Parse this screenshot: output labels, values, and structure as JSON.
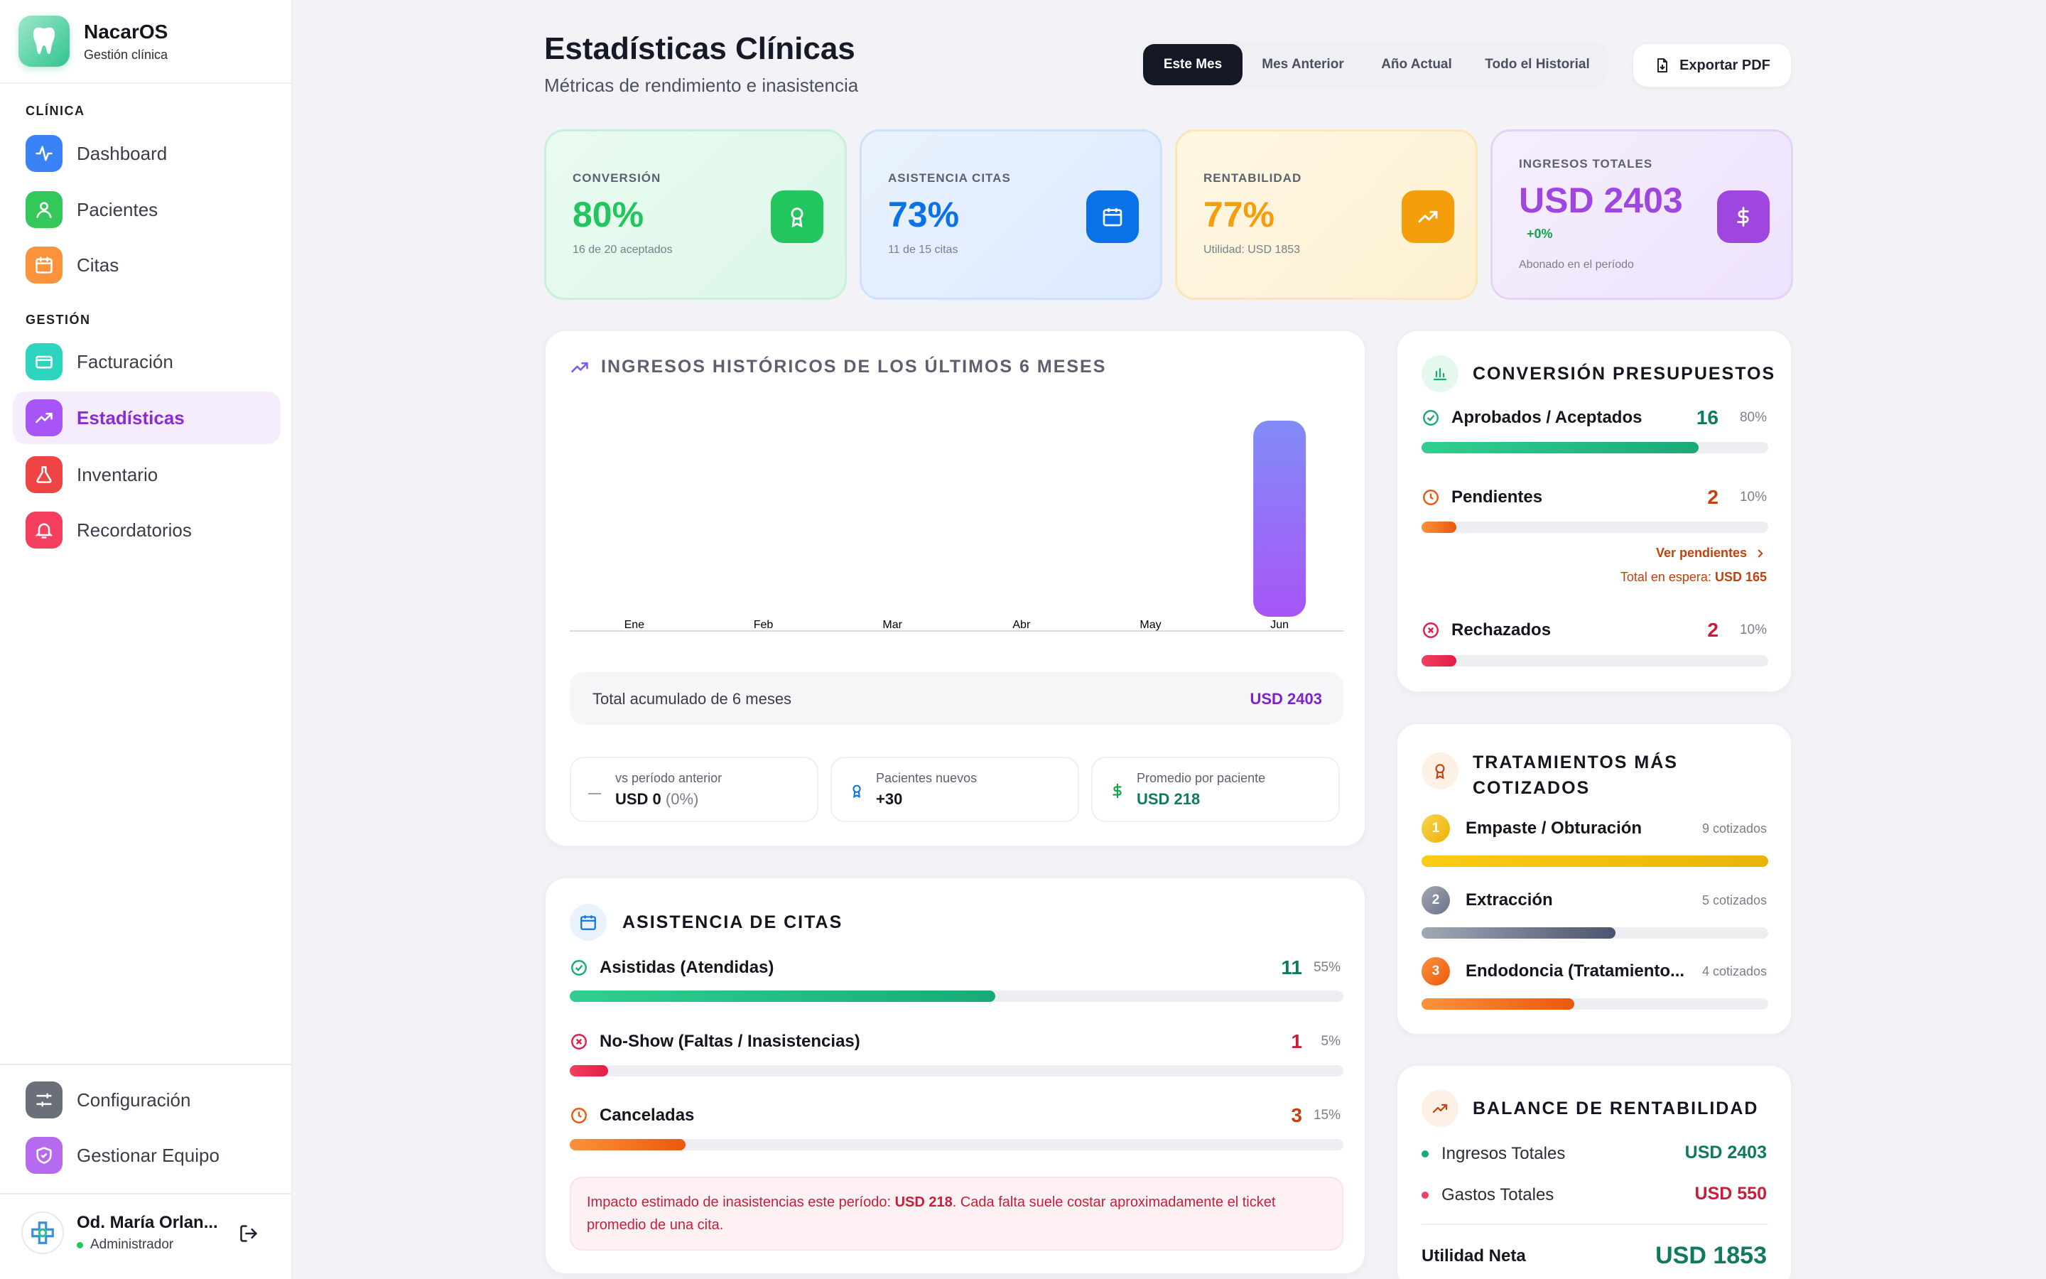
{
  "app": {
    "name": "NacarOS",
    "subtitle": "Gestión clínica"
  },
  "sidebar": {
    "section_clinica": "CLÍNICA",
    "section_gestion": "GESTIÓN",
    "items": [
      {
        "label": "Dashboard",
        "icon": "activity-icon",
        "color": "#3b82f6"
      },
      {
        "label": "Pacientes",
        "icon": "user-icon",
        "color": "#34c759"
      },
      {
        "label": "Citas",
        "icon": "calendar-icon",
        "color": "#fb923c"
      },
      {
        "label": "Facturación",
        "icon": "credit-card-icon",
        "color": "#2dd4bf"
      },
      {
        "label": "Estadísticas",
        "icon": "trending-up-icon",
        "color": "#a855f7"
      },
      {
        "label": "Inventario",
        "icon": "flask-icon",
        "color": "#ef4444"
      },
      {
        "label": "Recordatorios",
        "icon": "bell-icon",
        "color": "#f43f5e"
      }
    ],
    "bottom": [
      {
        "label": "Configuración",
        "icon": "sliders-icon"
      },
      {
        "label": "Gestionar Equipo",
        "icon": "shield-icon"
      }
    ],
    "user": {
      "name": "Od. María Orlan...",
      "role": "Administrador"
    }
  },
  "header": {
    "title": "Estadísticas Clínicas",
    "subtitle": "Métricas de rendimiento e inasistencia",
    "tabs": [
      "Este Mes",
      "Mes Anterior",
      "Año Actual",
      "Todo el Historial"
    ],
    "active_tab": "Este Mes",
    "export_label": "Exportar PDF"
  },
  "kpis": [
    {
      "label": "CONVERSIÓN",
      "value": "80%",
      "sub": "16 de 20 aceptados",
      "color": "#22c55e"
    },
    {
      "label": "ASISTENCIA CITAS",
      "value": "73%",
      "sub": "11 de 15 citas",
      "color": "#0a72e8"
    },
    {
      "label": "RENTABILIDAD",
      "value": "77%",
      "sub": "Utilidad: USD 1853",
      "color": "#f59e0b"
    },
    {
      "label": "INGRESOS TOTALES",
      "value": "USD 2403",
      "delta": "+0%",
      "sub": "Abonado en el período",
      "color": "#a046e0"
    }
  ],
  "revenue": {
    "title": "INGRESOS HISTÓRICOS DE LOS ÚLTIMOS 6 MESES",
    "total_label": "Total acumulado de 6 meses",
    "total_value": "USD 2403",
    "stats": [
      {
        "label": "vs período anterior",
        "value": "USD 0",
        "extra": "(0%)"
      },
      {
        "label": "Pacientes nuevos",
        "value": "+30"
      },
      {
        "label": "Promedio por paciente",
        "value": "USD 218"
      }
    ]
  },
  "chart_data": {
    "type": "bar",
    "categories": [
      "Ene",
      "Feb",
      "Mar",
      "Abr",
      "May",
      "Jun"
    ],
    "values": [
      0,
      0,
      0,
      0,
      0,
      2403
    ],
    "ylim": [
      0,
      2403
    ],
    "grid": false
  },
  "attendance": {
    "title": "ASISTENCIA DE CITAS",
    "rows": [
      {
        "label": "Asistidas (Atendidas)",
        "count": "11",
        "pct": "55%",
        "ratio": 0.55,
        "color": "#1aaa77"
      },
      {
        "label": "No-Show (Faltas / Inasistencias)",
        "count": "1",
        "pct": "5%",
        "ratio": 0.05,
        "color": "#e11d48"
      },
      {
        "label": "Canceladas",
        "count": "3",
        "pct": "15%",
        "ratio": 0.15,
        "color": "#ea580c"
      }
    ],
    "note_pre": "Impacto estimado de inasistencias este período: ",
    "note_amount": "USD 218",
    "note_post": ". Cada falta suele costar aproximadamente el ticket promedio de una cita."
  },
  "budgets": {
    "title": "CONVERSIÓN PRESUPUESTOS",
    "rows": [
      {
        "label": "Aprobados / Aceptados",
        "count": "16",
        "pct": "80%",
        "ratio": 0.8,
        "color": "#1aaa77"
      },
      {
        "label": "Pendientes",
        "count": "2",
        "pct": "10%",
        "ratio": 0.1,
        "color": "#ea580c"
      },
      {
        "label": "Rechazados",
        "count": "2",
        "pct": "10%",
        "ratio": 0.1,
        "color": "#e11d48"
      }
    ],
    "pending_link": "Ver pendientes",
    "waiting_label": "Total en espera: ",
    "waiting_value": "USD 165"
  },
  "treatments": {
    "title_1": "TRATAMIENTOS MÁS",
    "title_2": "COTIZADOS",
    "rows": [
      {
        "rank": "1",
        "label": "Empaste / Obturación",
        "count": "9 cotizados",
        "ratio": 1.0
      },
      {
        "rank": "2",
        "label": "Extracción",
        "count": "5 cotizados",
        "ratio": 0.56
      },
      {
        "rank": "3",
        "label": "Endodoncia (Tratamiento...",
        "count": "4 cotizados",
        "ratio": 0.44
      }
    ]
  },
  "balance": {
    "title": "BALANCE DE RENTABILIDAD",
    "income_label": "Ingresos Totales",
    "income_value": "USD 2403",
    "expense_label": "Gastos Totales",
    "expense_value": "USD 550",
    "net_label": "Utilidad Neta",
    "net_value": "USD 1853"
  }
}
